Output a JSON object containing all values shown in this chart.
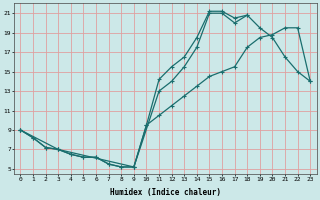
{
  "title": "",
  "xlabel": "Humidex (Indice chaleur)",
  "ylabel": "",
  "bg_color": "#cce8e8",
  "grid_color": "#e0a0a0",
  "line_color": "#1a6e6e",
  "xlim": [
    -0.5,
    23.5
  ],
  "ylim": [
    4.5,
    22.0
  ],
  "xticks": [
    0,
    1,
    2,
    3,
    4,
    5,
    6,
    7,
    8,
    9,
    10,
    11,
    12,
    13,
    14,
    15,
    16,
    17,
    18,
    19,
    20,
    21,
    22,
    23
  ],
  "yticks": [
    5,
    7,
    9,
    11,
    13,
    15,
    17,
    19,
    21
  ],
  "line1_x": [
    0,
    1,
    2,
    3,
    4,
    5,
    6,
    7,
    8,
    9,
    10,
    11,
    12,
    13,
    14,
    15,
    16,
    17,
    18
  ],
  "line1_y": [
    9.0,
    8.2,
    7.2,
    7.0,
    6.5,
    6.2,
    6.2,
    5.5,
    5.2,
    5.2,
    9.5,
    14.2,
    15.5,
    16.5,
    18.5,
    21.2,
    21.2,
    20.5,
    20.8
  ],
  "line2_x": [
    0,
    3,
    9,
    11,
    12,
    13,
    14,
    15,
    16,
    17,
    18,
    19,
    20,
    21,
    22,
    23
  ],
  "line2_y": [
    9.0,
    7.0,
    5.2,
    13.0,
    14.0,
    15.5,
    17.5,
    21.0,
    21.0,
    20.0,
    20.8,
    19.5,
    18.5,
    16.5,
    15.0,
    14.0
  ],
  "line3_x": [
    0,
    1,
    2,
    3,
    4,
    5,
    6,
    7,
    8,
    9,
    10,
    11,
    12,
    13,
    14,
    15,
    16,
    17,
    18,
    19,
    20,
    21,
    22,
    23
  ],
  "line3_y": [
    9.0,
    8.2,
    7.2,
    7.0,
    6.5,
    6.2,
    6.2,
    5.5,
    5.2,
    5.2,
    9.5,
    10.5,
    11.5,
    12.5,
    13.5,
    14.5,
    15.0,
    15.5,
    17.5,
    18.5,
    18.8,
    19.5,
    19.5,
    14.0
  ]
}
